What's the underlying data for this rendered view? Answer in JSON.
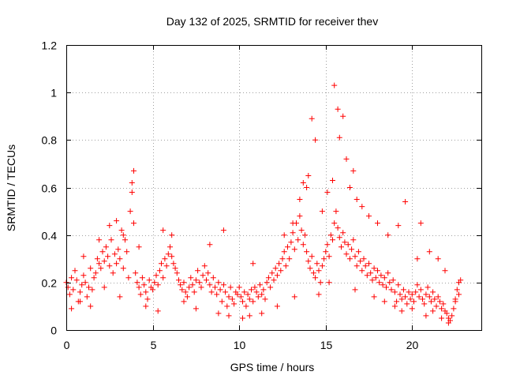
{
  "chart_data": {
    "type": "scatter",
    "title": "Day 132 of 2025, SRMTID for receiver thev",
    "xlabel": "GPS time / hours",
    "ylabel": "SRMTID / TECUs",
    "xlim": [
      0,
      24
    ],
    "ylim": [
      0,
      1.2
    ],
    "x_ticks": [
      0,
      5,
      10,
      15,
      20
    ],
    "x_tick_labels": [
      "0",
      "5",
      "10",
      "15",
      "20"
    ],
    "y_ticks": [
      0,
      0.2,
      0.4,
      0.6,
      0.8,
      1.0,
      1.2
    ],
    "y_tick_labels": [
      "0",
      "0.2",
      "0.4",
      "0.6",
      "0.8",
      "1",
      "1.2"
    ],
    "grid": true,
    "marker": "plus",
    "series_color": "#ff0000",
    "series": [
      {
        "name": "thev",
        "x": [
          0.0,
          0.1,
          0.2,
          0.3,
          0.4,
          0.5,
          0.6,
          0.7,
          0.8,
          0.9,
          1.0,
          1.1,
          1.2,
          1.3,
          1.4,
          1.5,
          1.6,
          1.7,
          1.8,
          1.9,
          2.0,
          2.1,
          2.2,
          2.3,
          2.4,
          2.5,
          2.6,
          2.7,
          2.8,
          2.9,
          3.0,
          3.1,
          3.2,
          3.3,
          3.4,
          3.5,
          3.6,
          3.7,
          3.8,
          3.9,
          4.0,
          4.1,
          4.2,
          4.3,
          4.4,
          4.5,
          4.6,
          4.7,
          4.8,
          4.9,
          5.0,
          5.1,
          5.2,
          5.3,
          5.4,
          5.5,
          5.6,
          5.7,
          5.8,
          5.9,
          6.0,
          6.1,
          6.2,
          6.3,
          6.4,
          6.5,
          6.6,
          6.7,
          6.8,
          6.9,
          7.0,
          7.1,
          7.2,
          7.3,
          7.4,
          7.5,
          7.6,
          7.7,
          7.8,
          7.9,
          8.0,
          8.1,
          8.2,
          8.3,
          8.4,
          8.5,
          8.6,
          8.7,
          8.8,
          8.9,
          9.0,
          9.1,
          9.2,
          9.3,
          9.4,
          9.5,
          9.6,
          9.7,
          9.8,
          9.9,
          10.0,
          10.1,
          10.2,
          10.3,
          10.4,
          10.5,
          10.6,
          10.7,
          10.8,
          10.9,
          11.0,
          11.1,
          11.2,
          11.3,
          11.4,
          11.5,
          11.6,
          11.7,
          11.8,
          11.9,
          12.0,
          12.1,
          12.2,
          12.3,
          12.4,
          12.5,
          12.6,
          12.7,
          12.8,
          12.9,
          13.0,
          13.1,
          13.2,
          13.3,
          13.4,
          13.5,
          13.6,
          13.7,
          13.8,
          13.9,
          14.0,
          14.1,
          14.2,
          14.3,
          14.4,
          14.5,
          14.6,
          14.7,
          14.8,
          14.9,
          15.0,
          15.1,
          15.2,
          15.3,
          15.4,
          15.5,
          15.6,
          15.7,
          15.8,
          15.9,
          16.0,
          16.1,
          16.2,
          16.3,
          16.4,
          16.5,
          16.6,
          16.7,
          16.8,
          16.9,
          17.0,
          17.1,
          17.2,
          17.3,
          17.4,
          17.5,
          17.6,
          17.7,
          17.8,
          17.9,
          18.0,
          18.1,
          18.2,
          18.3,
          18.4,
          18.5,
          18.6,
          18.7,
          18.8,
          18.9,
          19.0,
          19.1,
          19.2,
          19.3,
          19.4,
          19.5,
          19.6,
          19.7,
          19.8,
          19.9,
          20.0,
          20.1,
          20.2,
          20.3,
          20.4,
          20.5,
          20.6,
          20.7,
          20.8,
          20.9,
          21.0,
          21.1,
          21.2,
          21.3,
          21.4,
          21.5,
          21.6,
          21.7,
          21.8,
          21.9,
          22.0,
          22.1,
          22.2,
          22.3,
          22.4,
          22.5,
          22.6,
          22.7,
          22.8,
          1.0,
          1.9,
          2.5,
          2.9,
          3.3,
          3.8,
          3.9,
          4.2,
          5.6,
          6.1,
          8.3,
          9.1,
          10.8,
          12.6,
          13.1,
          13.5,
          13.7,
          13.9,
          14.0,
          14.2,
          14.4,
          14.8,
          15.1,
          15.4,
          15.5,
          15.7,
          15.8,
          16.0,
          16.2,
          16.4,
          16.6,
          16.8,
          17.1,
          17.5,
          18.0,
          18.6,
          19.2,
          19.6,
          20.3,
          20.5,
          21.0,
          21.5,
          21.9,
          0.3,
          0.8,
          1.4,
          2.2,
          3.1,
          4.6,
          5.3,
          6.8,
          7.5,
          8.8,
          9.4,
          10.2,
          10.6,
          11.3,
          12.2,
          13.2,
          14.6,
          15.2,
          16.7,
          17.8,
          18.4,
          19.0,
          19.4,
          20.0,
          20.8,
          21.2,
          21.7,
          22.1,
          22.5,
          22.7
        ],
        "y": [
          0.2,
          0.18,
          0.15,
          0.22,
          0.17,
          0.25,
          0.21,
          0.12,
          0.16,
          0.19,
          0.23,
          0.2,
          0.14,
          0.18,
          0.26,
          0.17,
          0.22,
          0.24,
          0.3,
          0.28,
          0.26,
          0.33,
          0.29,
          0.35,
          0.31,
          0.27,
          0.38,
          0.24,
          0.32,
          0.28,
          0.34,
          0.3,
          0.42,
          0.26,
          0.38,
          0.33,
          0.22,
          0.5,
          0.58,
          0.45,
          0.24,
          0.2,
          0.18,
          0.15,
          0.22,
          0.19,
          0.16,
          0.13,
          0.21,
          0.18,
          0.17,
          0.2,
          0.23,
          0.19,
          0.25,
          0.28,
          0.22,
          0.3,
          0.27,
          0.32,
          0.35,
          0.31,
          0.28,
          0.26,
          0.24,
          0.21,
          0.19,
          0.17,
          0.2,
          0.16,
          0.14,
          0.18,
          0.22,
          0.19,
          0.16,
          0.21,
          0.25,
          0.2,
          0.18,
          0.23,
          0.27,
          0.21,
          0.24,
          0.19,
          0.16,
          0.22,
          0.18,
          0.15,
          0.2,
          0.17,
          0.12,
          0.19,
          0.16,
          0.1,
          0.14,
          0.18,
          0.13,
          0.11,
          0.16,
          0.15,
          0.18,
          0.14,
          0.12,
          0.16,
          0.1,
          0.15,
          0.13,
          0.17,
          0.12,
          0.18,
          0.16,
          0.14,
          0.19,
          0.15,
          0.17,
          0.13,
          0.2,
          0.22,
          0.18,
          0.24,
          0.21,
          0.26,
          0.23,
          0.28,
          0.25,
          0.3,
          0.33,
          0.27,
          0.35,
          0.3,
          0.37,
          0.41,
          0.34,
          0.45,
          0.38,
          0.48,
          0.42,
          0.36,
          0.4,
          0.33,
          0.29,
          0.26,
          0.31,
          0.24,
          0.22,
          0.28,
          0.25,
          0.2,
          0.27,
          0.3,
          0.33,
          0.36,
          0.31,
          0.4,
          0.38,
          0.45,
          0.5,
          0.43,
          0.39,
          0.35,
          0.41,
          0.37,
          0.32,
          0.36,
          0.3,
          0.34,
          0.38,
          0.31,
          0.27,
          0.33,
          0.29,
          0.25,
          0.3,
          0.27,
          0.23,
          0.28,
          0.24,
          0.21,
          0.26,
          0.22,
          0.25,
          0.2,
          0.23,
          0.19,
          0.22,
          0.18,
          0.24,
          0.2,
          0.17,
          0.21,
          0.16,
          0.12,
          0.19,
          0.15,
          0.13,
          0.17,
          0.14,
          0.11,
          0.16,
          0.13,
          0.15,
          0.12,
          0.16,
          0.19,
          0.14,
          0.17,
          0.13,
          0.11,
          0.15,
          0.18,
          0.14,
          0.12,
          0.16,
          0.13,
          0.1,
          0.14,
          0.12,
          0.09,
          0.11,
          0.08,
          0.07,
          0.05,
          0.04,
          0.06,
          0.09,
          0.13,
          0.17,
          0.2,
          0.21,
          0.31,
          0.38,
          0.44,
          0.46,
          0.4,
          0.62,
          0.67,
          0.35,
          0.42,
          0.4,
          0.36,
          0.42,
          0.28,
          0.4,
          0.45,
          0.55,
          0.62,
          0.6,
          0.65,
          0.89,
          0.8,
          0.5,
          0.58,
          0.63,
          1.03,
          0.93,
          0.81,
          0.9,
          0.72,
          0.6,
          0.67,
          0.55,
          0.52,
          0.48,
          0.45,
          0.4,
          0.44,
          0.54,
          0.3,
          0.45,
          0.33,
          0.3,
          0.25,
          0.09,
          0.12,
          0.1,
          0.18,
          0.14,
          0.1,
          0.08,
          0.12,
          0.09,
          0.07,
          0.06,
          0.05,
          0.06,
          0.07,
          0.1,
          0.14,
          0.15,
          0.2,
          0.17,
          0.14,
          0.12,
          0.1,
          0.08,
          0.09,
          0.06,
          0.08,
          0.05,
          0.03,
          0.12,
          0.15
        ]
      }
    ]
  }
}
